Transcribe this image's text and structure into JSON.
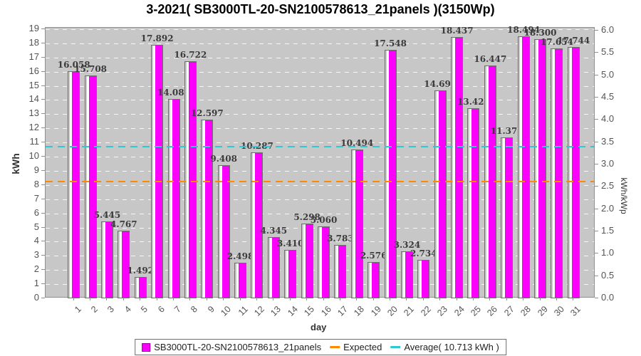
{
  "chart_data": {
    "type": "bar",
    "title": "3-2021( SB3000TL-20-SN2100578613_21panels )(3150Wp)",
    "xlabel": "day",
    "ylabel_left": "kWh",
    "ylabel_right": "kWh/kWp",
    "categories": [
      "1",
      "2",
      "3",
      "4",
      "5",
      "6",
      "7",
      "8",
      "9",
      "10",
      "11",
      "12",
      "13",
      "14",
      "15",
      "16",
      "17",
      "18",
      "19",
      "20",
      "21",
      "22",
      "23",
      "24",
      "25",
      "26",
      "27",
      "28",
      "29",
      "30",
      "31"
    ],
    "series": [
      {
        "name": "SB3000TL-20-SN2100578613_21panels",
        "values": [
          16.058,
          15.708,
          5.445,
          4.767,
          1.492,
          17.892,
          14.083,
          16.722,
          12.597,
          9.408,
          2.498,
          10.287,
          4.345,
          3.41,
          5.298,
          5.06,
          3.783,
          10.494,
          2.576,
          17.548,
          3.324,
          2.734,
          14.697,
          18.437,
          13.421,
          16.447,
          11.376,
          18.494,
          18.3,
          17.654,
          17.744
        ]
      }
    ],
    "average_kwh": 10.713,
    "expected_kwh": 8.25,
    "ylim_left": [
      0,
      19.1
    ],
    "ytick_left_max": 19,
    "ytick_left_step": 1,
    "ylim_right": [
      0,
      6.0
    ],
    "ytick_right_step": 0.5,
    "kwp": 3.15,
    "grid": true,
    "legend_position": "bottom"
  },
  "legend": {
    "series_label": "SB3000TL-20-SN2100578613_21panels",
    "expected_label": "Expected",
    "average_label": "Average( 10.713 kWh )"
  },
  "colors": {
    "bar_fill": "#fb00fb",
    "bar_outline": "#6e6e6e",
    "bar_highlight": "#ffffff",
    "bar_inset_gray": "#c7c7c7",
    "expected_line": "#ff8a00",
    "average_line": "#30c9cf",
    "plot_background": "#c7c7c7",
    "gridline": "#ffffff"
  }
}
